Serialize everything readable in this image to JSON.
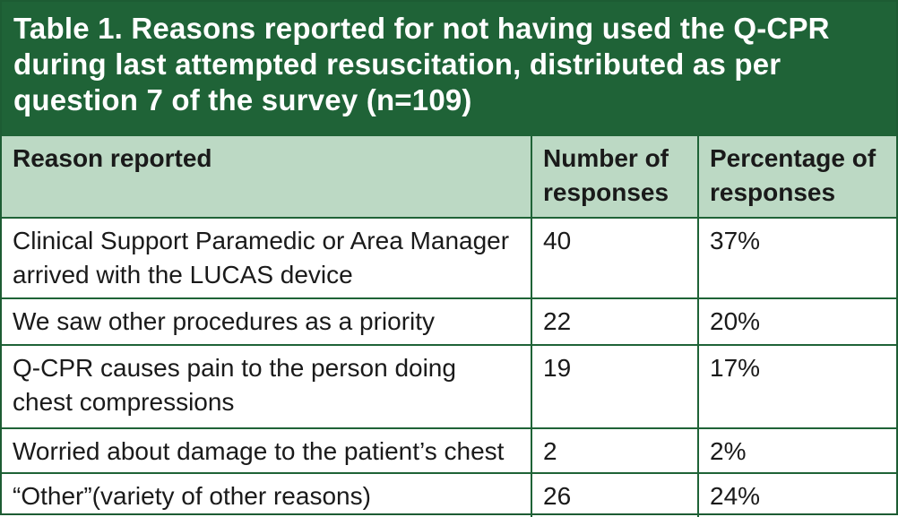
{
  "caption": "Table 1. Reasons reported for not having used the Q-CPR during last attempted resuscitation, distributed as per question 7 of the survey (n=109)",
  "columns": [
    "Reason reported",
    "Number of responses",
    "Percentage of responses"
  ],
  "rows": [
    {
      "reason": "Clinical Support Paramedic or Area Manager arrived with the LUCAS device",
      "number": "40",
      "percentage": "37%"
    },
    {
      "reason": "We saw other procedures as a priority",
      "number": "22",
      "percentage": "20%"
    },
    {
      "reason": "Q-CPR causes pain to the person doing chest compressions",
      "number": "19",
      "percentage": "17%"
    },
    {
      "reason": "Worried about damage to the patient’s chest",
      "number": "2",
      "percentage": "2%"
    },
    {
      "reason": "“Other”(variety of other reasons)",
      "number": "26",
      "percentage": "24%"
    }
  ],
  "colors": {
    "caption_background": "#1f6337",
    "header_background": "#bcd9c4",
    "border": "#1f6337"
  }
}
